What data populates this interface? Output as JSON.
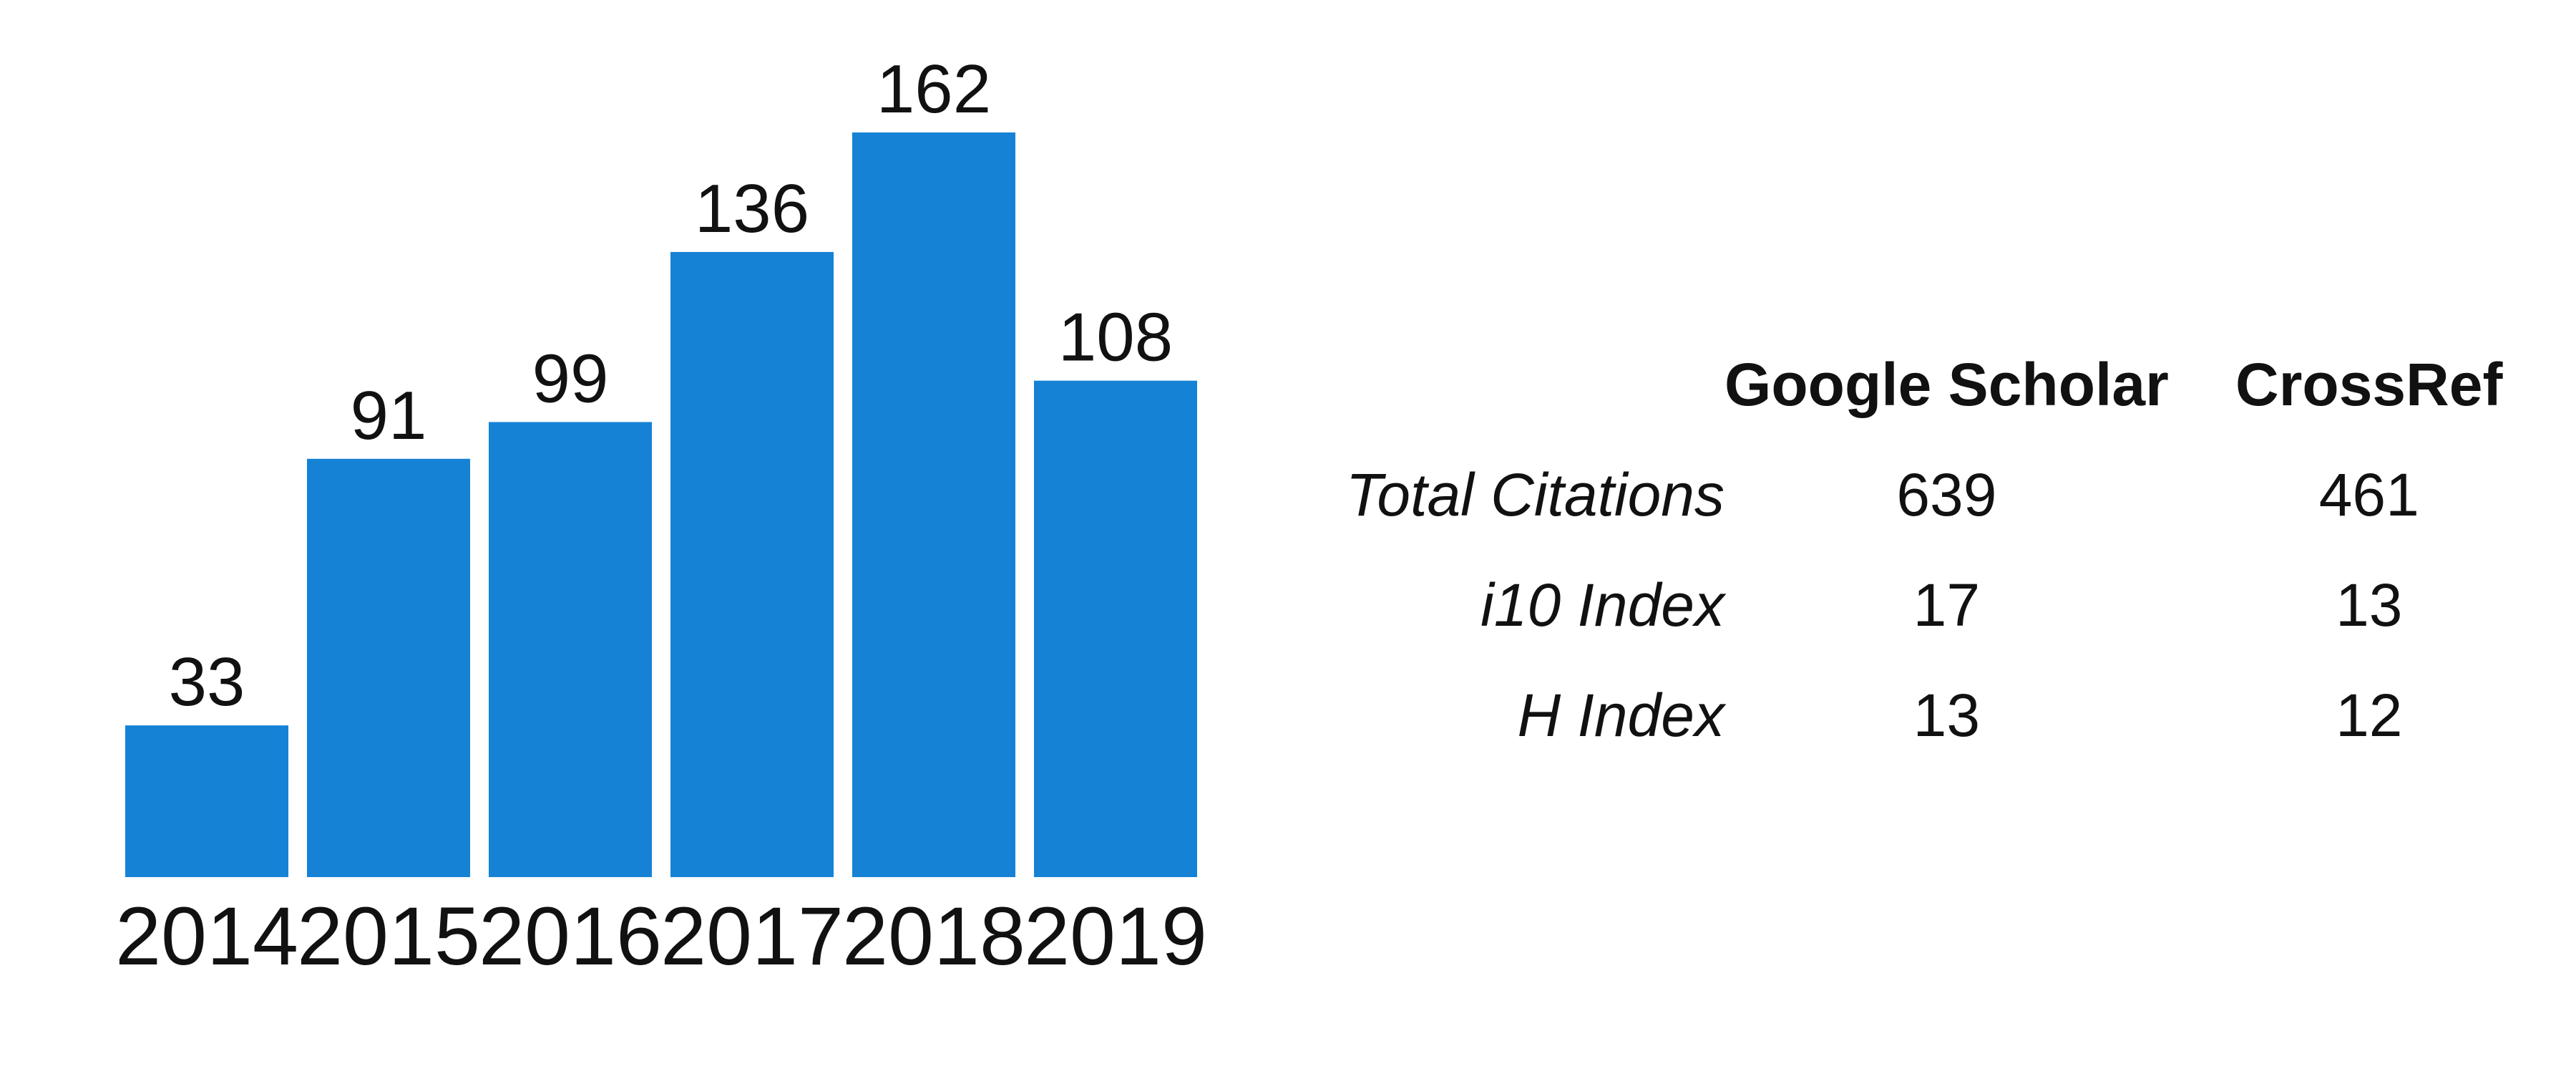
{
  "chart_data": {
    "type": "bar",
    "categories": [
      "2014",
      "2015",
      "2016",
      "2017",
      "2018",
      "2019"
    ],
    "values": [
      33,
      91,
      99,
      136,
      162,
      108
    ],
    "value_labels": [
      "33",
      "91",
      "99",
      "136",
      "162",
      "108"
    ],
    "title": "",
    "xlabel": "",
    "ylabel": "",
    "ylim": [
      0,
      162
    ],
    "grid": false,
    "legend": "none",
    "bar_color": "#1582d6"
  },
  "table": {
    "columns": [
      "",
      "Google Scholar",
      "CrossRef"
    ],
    "rows": [
      {
        "label": "Total Citations",
        "google_scholar": "639",
        "crossref": "461"
      },
      {
        "label": "i10 Index",
        "google_scholar": "17",
        "crossref": "13"
      },
      {
        "label": "H Index",
        "google_scholar": "13",
        "crossref": "12"
      }
    ]
  }
}
